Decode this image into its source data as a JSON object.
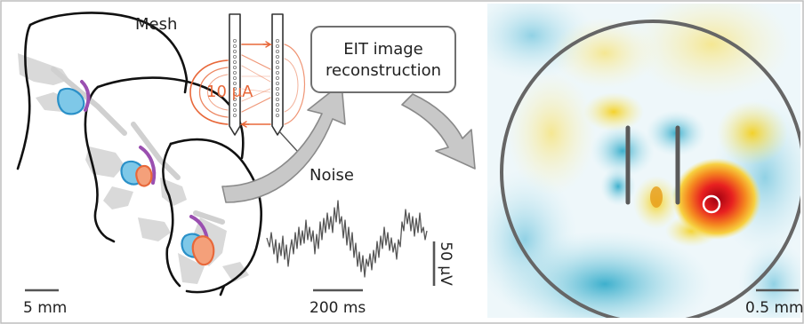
{
  "labels": {
    "mesh": "Mesh",
    "current": "10 μA",
    "eit_box_line1": "EIT image",
    "eit_box_line2": "reconstruction",
    "noise": "Noise",
    "scale_mesh": "5 mm",
    "scale_time": "200 ms",
    "scale_voltage": "50 μV",
    "scale_image": "0.5 mm"
  },
  "colors": {
    "electrode_current": "#e8683a",
    "brain_outline": "#111111",
    "region_blue": "#2a90c8",
    "region_blue_fill": "#7ec8e8",
    "region_purple": "#9a4fb0",
    "region_orange": "#e8683a",
    "region_orange_fill": "#f4a07a",
    "arrow_fill": "#c8c8c8",
    "arrow_stroke": "#8a8a8a",
    "box_stroke": "#707070",
    "trace": "#555555",
    "heatmap_positive": "#e82020",
    "heatmap_negative": "#2aa8c8",
    "circle_stroke": "#666666"
  }
}
